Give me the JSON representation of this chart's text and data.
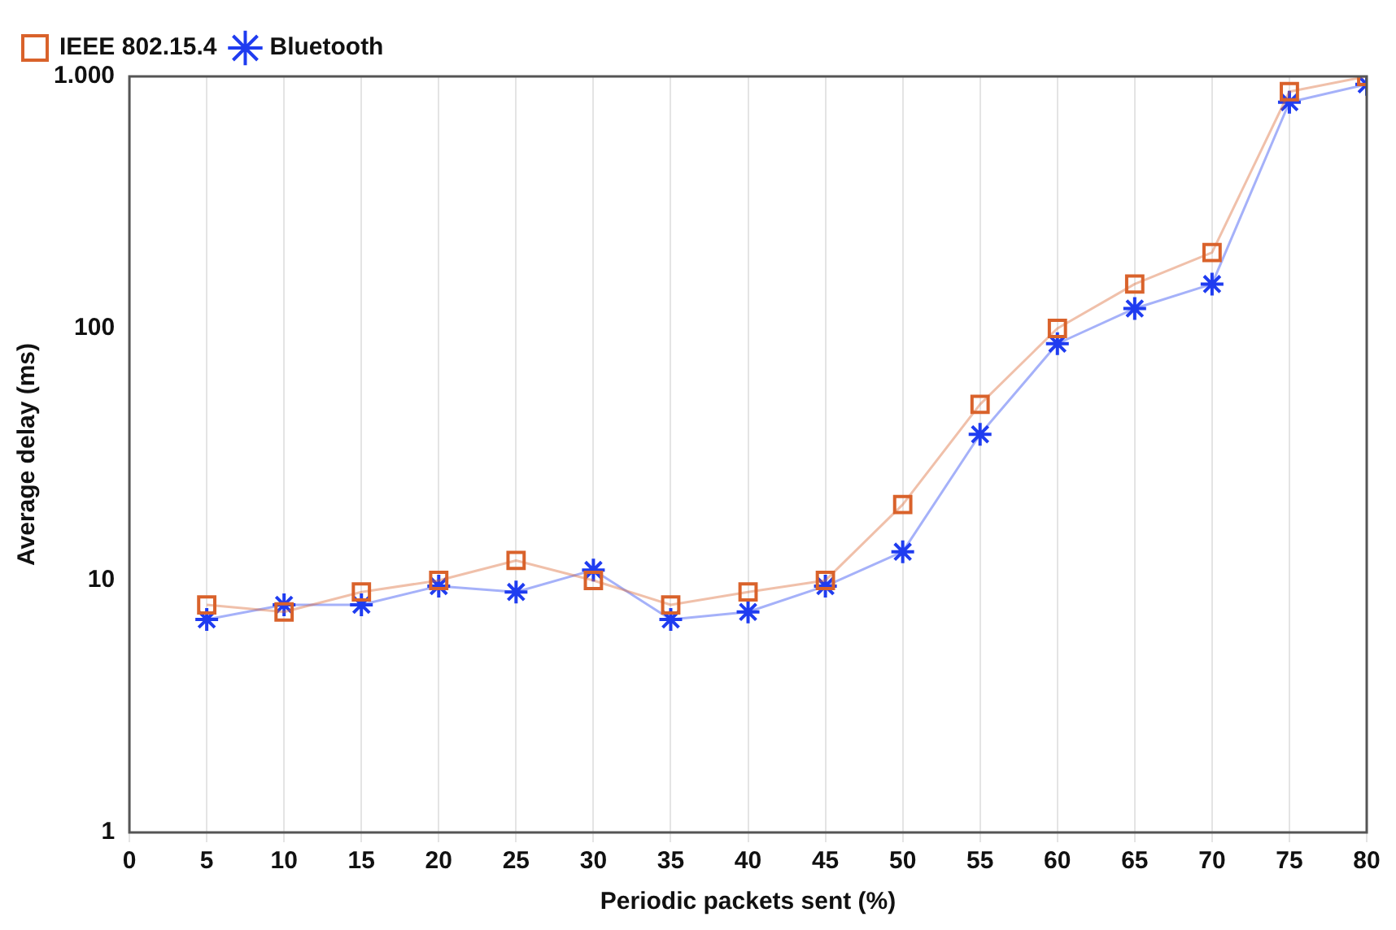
{
  "chart_data": {
    "type": "line",
    "xlabel": "Periodic packets sent (%)",
    "ylabel": "Average delay (ms)",
    "x": [
      5,
      10,
      15,
      20,
      25,
      30,
      35,
      40,
      45,
      50,
      55,
      60,
      65,
      70,
      75,
      80
    ],
    "series": [
      {
        "name": "IEEE 802.15.4",
        "color": "#d9622b",
        "marker": "square",
        "values": [
          8,
          7.5,
          9,
          10,
          12,
          10,
          8,
          9,
          10,
          20,
          50,
          100,
          150,
          200,
          870,
          1000
        ]
      },
      {
        "name": "Bluetooth",
        "color": "#1f3cf0",
        "marker": "cross",
        "values": [
          7,
          8,
          8,
          9.5,
          9,
          11,
          7,
          7.5,
          9.5,
          13,
          38,
          87,
          120,
          150,
          790,
          930
        ]
      }
    ],
    "xlim": [
      0,
      80
    ],
    "xticks": [
      0,
      5,
      10,
      15,
      20,
      25,
      30,
      35,
      40,
      45,
      50,
      55,
      60,
      65,
      70,
      75,
      80
    ],
    "ylim": [
      1,
      1000
    ],
    "yticks": [
      1,
      10,
      100,
      {
        "value": 1000,
        "label": "1.000"
      }
    ],
    "log": "y",
    "grid": "x",
    "legend": "top left",
    "line_style": "solid"
  }
}
